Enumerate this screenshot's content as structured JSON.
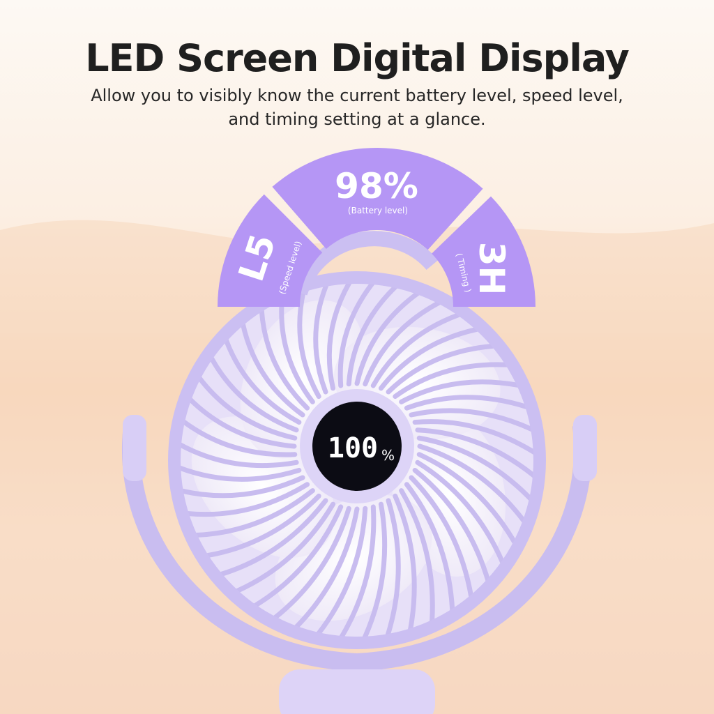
{
  "header": {
    "title": "LED Screen Digital Display",
    "subtitle": "Allow you to visibly know the current battery level, speed level, and timing setting at a glance."
  },
  "indicators": {
    "speed": {
      "value": "L5",
      "label": "(Speed level)"
    },
    "battery": {
      "value": "98%",
      "label": "(Battery level)"
    },
    "timing": {
      "value": "3H",
      "label": "( Timing )"
    }
  },
  "fan_screen": {
    "reading": "100",
    "unit": "%"
  },
  "colors": {
    "accent": "#b596f5",
    "fan_body": "#d6ccf5",
    "screen": "#0c0c14"
  }
}
